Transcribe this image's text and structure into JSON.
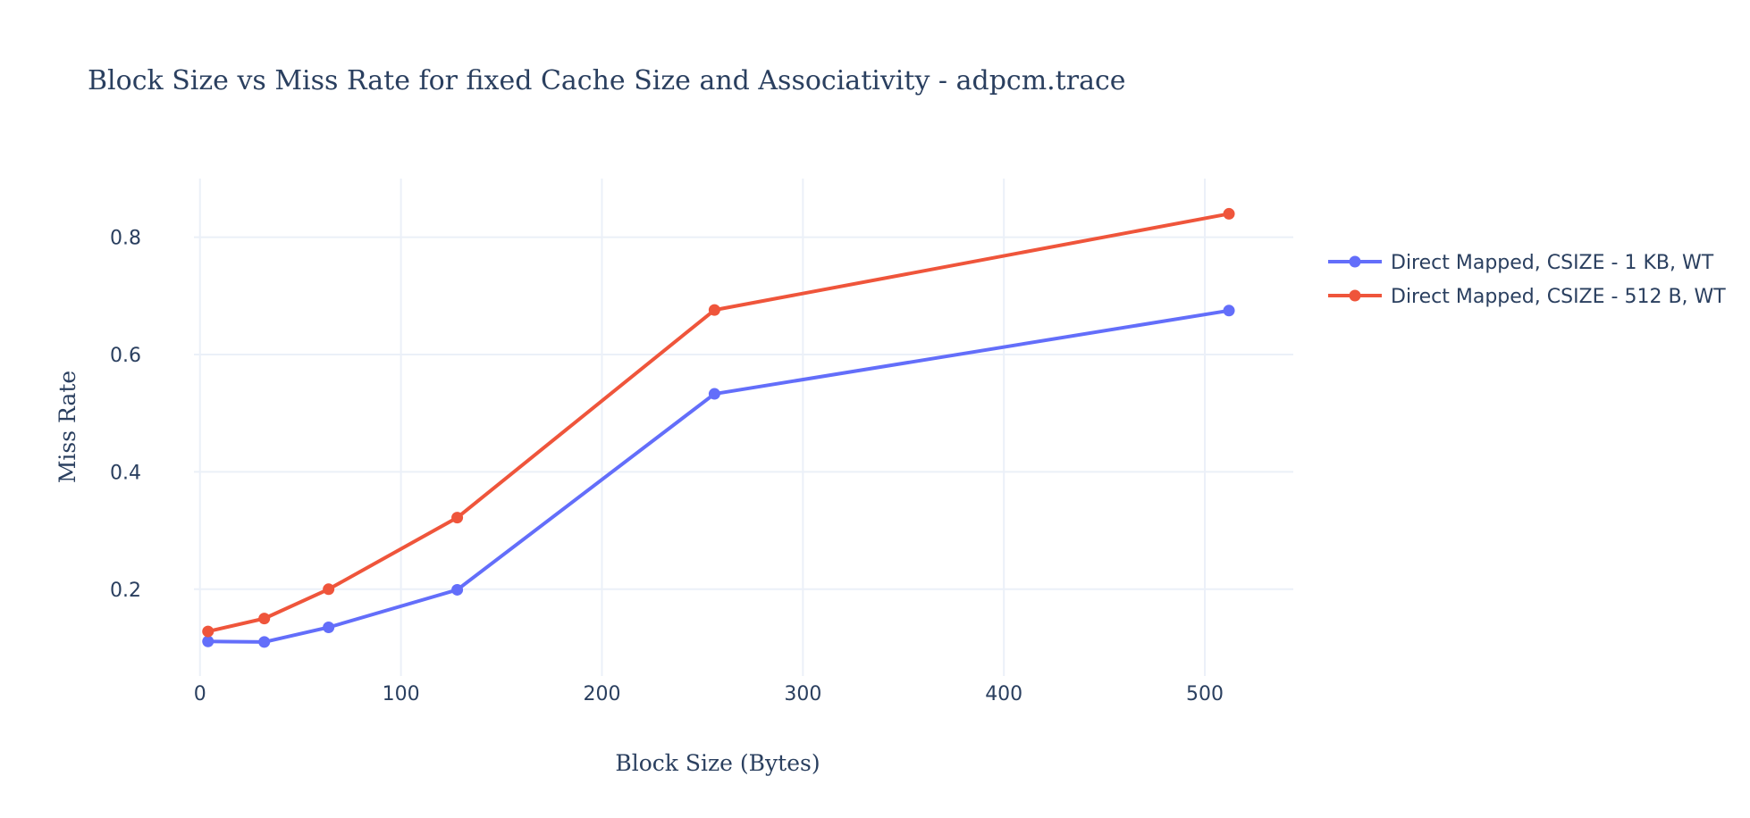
{
  "chart_data": {
    "type": "line",
    "title": "Block Size vs Miss Rate for fixed Cache Size and Associativity - adpcm.trace",
    "xlabel": "Block Size (Bytes)",
    "ylabel": "Miss Rate",
    "xlim": [
      -3,
      544
    ],
    "ylim": [
      0.052,
      0.9
    ],
    "xticks": [
      0,
      100,
      200,
      300,
      400,
      500
    ],
    "yticks": [
      0.2,
      0.4,
      0.6,
      0.8
    ],
    "grid": true,
    "legend_position": "right",
    "series": [
      {
        "name": "Direct Mapped, CSIZE - 1 KB, WT",
        "color": "#636efa",
        "x": [
          4,
          32,
          64,
          128,
          256,
          512
        ],
        "y": [
          0.111,
          0.11,
          0.135,
          0.199,
          0.533,
          0.675
        ]
      },
      {
        "name": "Direct Mapped, CSIZE - 512 B, WT",
        "color": "#ef553b",
        "x": [
          4,
          32,
          64,
          128,
          256,
          512
        ],
        "y": [
          0.128,
          0.15,
          0.2,
          0.322,
          0.676,
          0.84
        ]
      }
    ]
  }
}
